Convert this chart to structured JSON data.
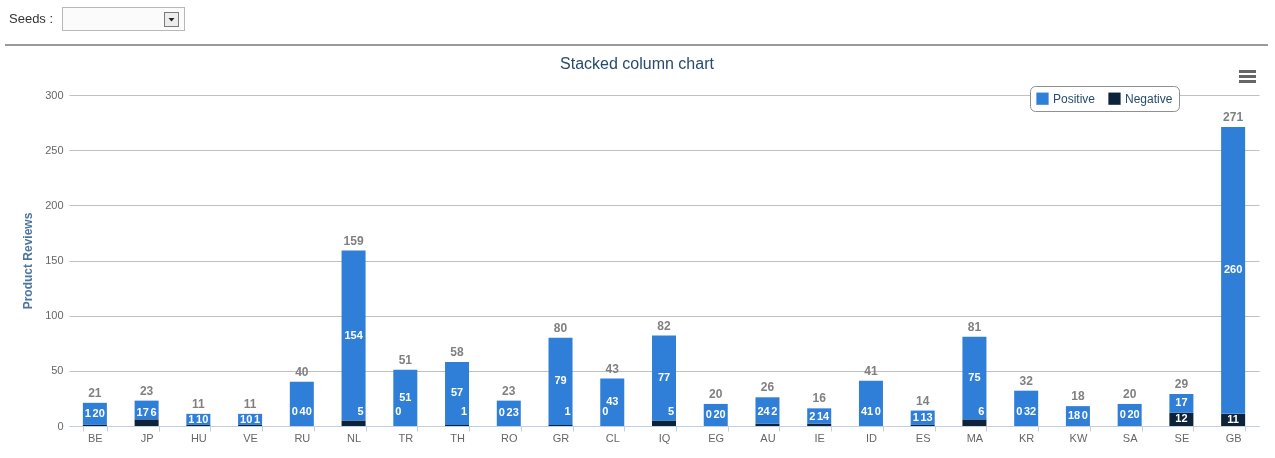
{
  "chart_data": {
    "type": "bar",
    "title": "Stacked column chart",
    "ylabel": "Product Reviews",
    "annotations": [
      "Seeds :"
    ],
    "categories": [
      "BE",
      "JP",
      "HU",
      "VE",
      "RU",
      "NL",
      "TR",
      "TH",
      "RO",
      "GR",
      "CL",
      "IQ",
      "EG",
      "AU",
      "IE",
      "ID",
      "ES",
      "MA",
      "KR",
      "KW",
      "SA",
      "SE",
      "GB"
    ],
    "series": [
      {
        "name": "Negative",
        "color": "#0d233a",
        "values": [
          1,
          6,
          1,
          1,
          0,
          5,
          0,
          1,
          0,
          1,
          0,
          5,
          0,
          2,
          2,
          0,
          1,
          6,
          0,
          0,
          0,
          12,
          11
        ]
      },
      {
        "name": "Positive",
        "color": "#2f7ed8",
        "values": [
          20,
          17,
          10,
          10,
          40,
          154,
          51,
          57,
          23,
          79,
          43,
          77,
          20,
          24,
          14,
          41,
          13,
          75,
          32,
          18,
          20,
          17,
          260
        ]
      }
    ],
    "stacked": true,
    "data_labels": true,
    "totals": [
      "21",
      "23",
      "11",
      "11",
      "40",
      "159",
      "51",
      "58",
      "23",
      "80",
      "43",
      "82",
      "20",
      "26",
      "16",
      "41",
      "14",
      "81",
      "32",
      "18",
      "20",
      "29",
      "271"
    ],
    "ylim": [
      0,
      300
    ],
    "yticks": [
      0,
      50,
      100,
      150,
      200,
      250,
      300
    ],
    "grid": "y",
    "legend": "top right"
  }
}
